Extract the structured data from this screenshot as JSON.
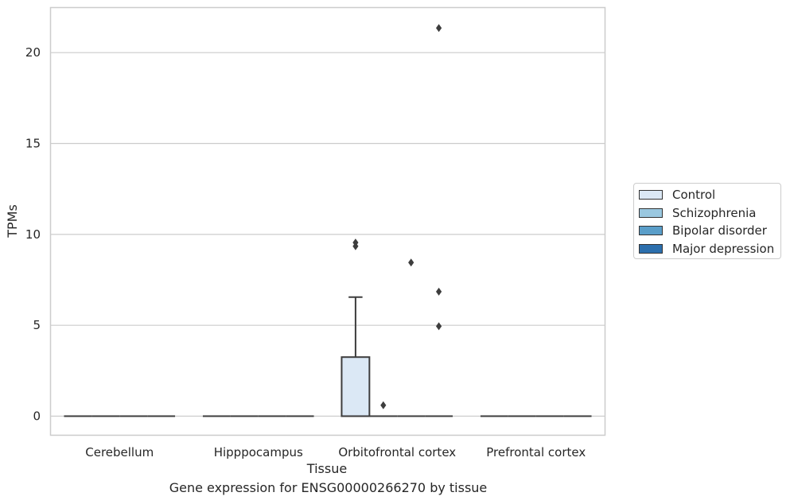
{
  "chart_data": {
    "type": "box",
    "title": "",
    "xlabel": "Tissue",
    "ylabel": "TPMs",
    "caption": "Gene expression for ENSG00000266270 by tissue",
    "categories": [
      "Cerebellum",
      "Hipppocampus",
      "Orbitofrontal cortex",
      "Prefrontal cortex"
    ],
    "yticks": [
      0,
      5,
      10,
      15,
      20
    ],
    "ylim": [
      -1.07,
      22.5
    ],
    "grid": "horizontal",
    "legend_position": "right",
    "series": [
      {
        "name": "Control",
        "color": "#dbe8f5",
        "boxes": [
          {
            "category": "Cerebellum",
            "min": 0,
            "q1": 0,
            "median": 0,
            "q3": 0,
            "max": 0,
            "outliers": []
          },
          {
            "category": "Hipppocampus",
            "min": 0,
            "q1": 0,
            "median": 0,
            "q3": 0,
            "max": 0,
            "outliers": []
          },
          {
            "category": "Orbitofrontal cortex",
            "min": 0,
            "q1": 0,
            "median": 0,
            "q3": 3.25,
            "max": 6.55,
            "outliers": [
              9.35,
              9.55
            ]
          },
          {
            "category": "Prefrontal cortex",
            "min": 0,
            "q1": 0,
            "median": 0,
            "q3": 0,
            "max": 0,
            "outliers": []
          }
        ]
      },
      {
        "name": "Schizophrenia",
        "color": "#9ac8e0",
        "boxes": [
          {
            "category": "Cerebellum",
            "min": 0,
            "q1": 0,
            "median": 0,
            "q3": 0,
            "max": 0,
            "outliers": []
          },
          {
            "category": "Hipppocampus",
            "min": 0,
            "q1": 0,
            "median": 0,
            "q3": 0,
            "max": 0,
            "outliers": []
          },
          {
            "category": "Orbitofrontal cortex",
            "min": 0,
            "q1": 0,
            "median": 0,
            "q3": 0,
            "max": 0,
            "outliers": [
              0.6
            ]
          },
          {
            "category": "Prefrontal cortex",
            "min": 0,
            "q1": 0,
            "median": 0,
            "q3": 0,
            "max": 0,
            "outliers": []
          }
        ]
      },
      {
        "name": "Bipolar disorder",
        "color": "#5a9ec9",
        "boxes": [
          {
            "category": "Cerebellum",
            "min": 0,
            "q1": 0,
            "median": 0,
            "q3": 0,
            "max": 0,
            "outliers": []
          },
          {
            "category": "Hipppocampus",
            "min": 0,
            "q1": 0,
            "median": 0,
            "q3": 0,
            "max": 0,
            "outliers": []
          },
          {
            "category": "Orbitofrontal cortex",
            "min": 0,
            "q1": 0,
            "median": 0,
            "q3": 0,
            "max": 0,
            "outliers": [
              8.45
            ]
          },
          {
            "category": "Prefrontal cortex",
            "min": 0,
            "q1": 0,
            "median": 0,
            "q3": 0,
            "max": 0,
            "outliers": []
          }
        ]
      },
      {
        "name": "Major depression",
        "color": "#2c6fad",
        "boxes": [
          {
            "category": "Cerebellum",
            "min": 0,
            "q1": 0,
            "median": 0,
            "q3": 0,
            "max": 0,
            "outliers": []
          },
          {
            "category": "Hipppocampus",
            "min": 0,
            "q1": 0,
            "median": 0,
            "q3": 0,
            "max": 0,
            "outliers": []
          },
          {
            "category": "Orbitofrontal cortex",
            "min": 0,
            "q1": 0,
            "median": 0,
            "q3": 0,
            "max": 0,
            "outliers": [
              4.95,
              6.85,
              21.35
            ]
          },
          {
            "category": "Prefrontal cortex",
            "min": 0,
            "q1": 0,
            "median": 0,
            "q3": 0,
            "max": 0,
            "outliers": []
          }
        ]
      }
    ]
  }
}
